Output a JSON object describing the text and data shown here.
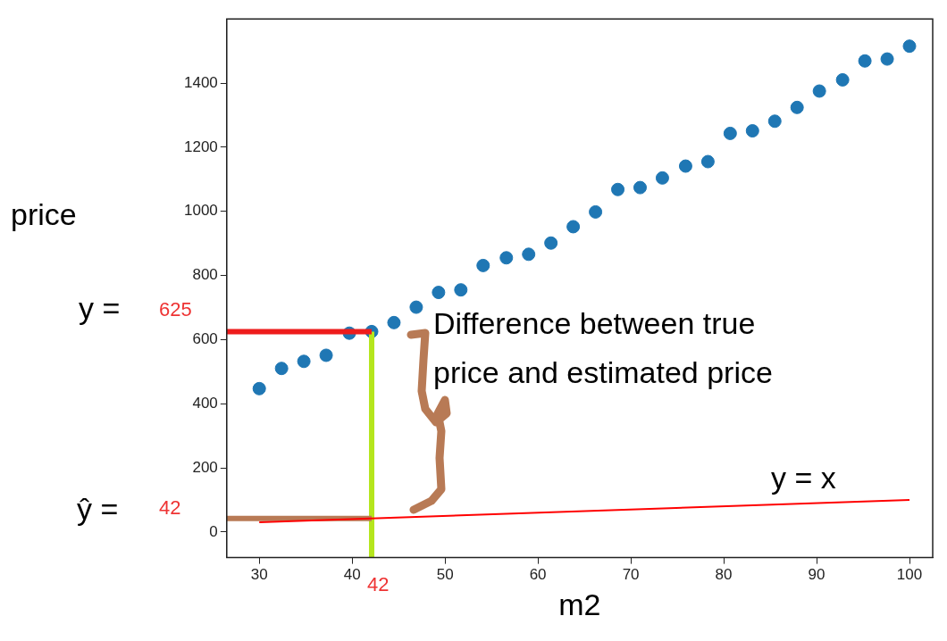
{
  "chart_data": {
    "type": "scatter",
    "xlabel": "m2",
    "ylabel": "price",
    "xlim": [
      26.5,
      102.5
    ],
    "xticks": [
      30,
      40,
      50,
      60,
      70,
      80,
      90,
      100
    ],
    "ylim": [
      -80,
      1600
    ],
    "yticks": [
      0,
      200,
      400,
      600,
      800,
      1000,
      1200,
      1400
    ],
    "grid": false,
    "legend": false,
    "series": [
      {
        "marker": "circle",
        "color": "#1f77b4",
        "x": [
          30,
          32.4,
          34.8,
          37.2,
          39.7,
          42.1,
          44.5,
          46.9,
          49.3,
          51.7,
          54.1,
          56.6,
          59.0,
          61.4,
          63.8,
          66.2,
          68.6,
          71.0,
          73.4,
          75.9,
          78.3,
          80.7,
          83.1,
          85.5,
          87.9,
          90.3,
          92.8,
          95.2,
          97.6,
          100
        ],
        "values": [
          447,
          510,
          532,
          551,
          620,
          625,
          653,
          701,
          747,
          755,
          831,
          855,
          866,
          901,
          952,
          998,
          1068,
          1074,
          1104,
          1141,
          1155,
          1243,
          1251,
          1281,
          1324,
          1375,
          1410,
          1469,
          1475,
          1515
        ]
      },
      {
        "type": "line",
        "color": "#ff0000",
        "x": [
          30,
          100
        ],
        "values": [
          30,
          100
        ]
      },
      {
        "type": "line",
        "color": "#ee1c1c",
        "x": [
          26.5,
          42.1
        ],
        "values": [
          625,
          625
        ]
      },
      {
        "type": "line",
        "color": "#b87a55",
        "x": [
          26.5,
          42.1
        ],
        "values": [
          42,
          42
        ]
      },
      {
        "type": "line",
        "color": "#b5e61d",
        "x": [
          42.1,
          42.1
        ],
        "values": [
          -80,
          625
        ]
      }
    ],
    "annotations": [
      "y =",
      "ŷ =",
      "Difference between true price and estimated price",
      "y = x",
      "625",
      "42",
      "42"
    ]
  }
}
